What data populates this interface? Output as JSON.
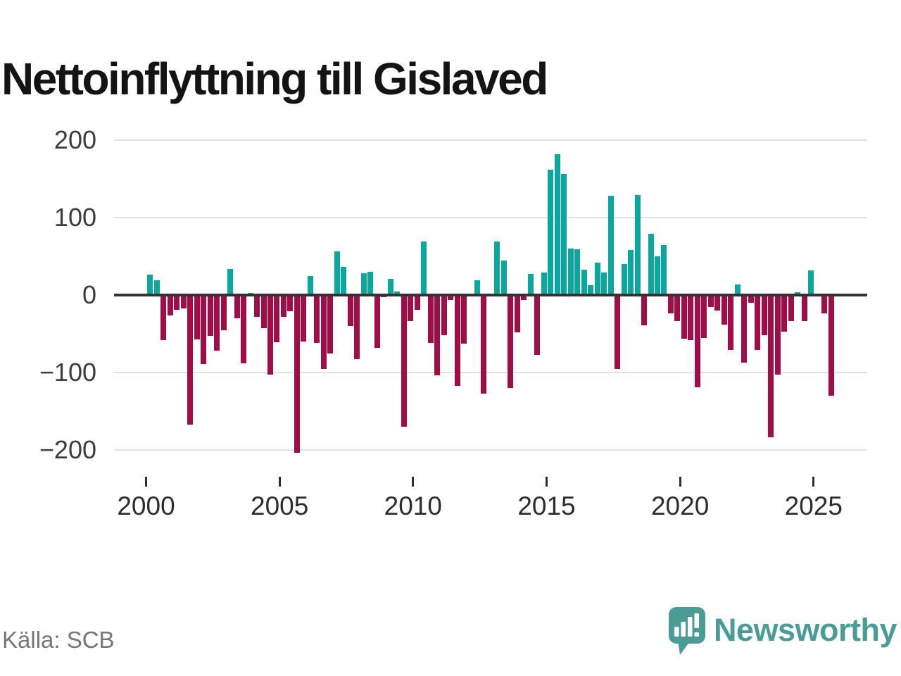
{
  "title": "Nettoinflyttning till Gislaved",
  "source": "Källa: SCB",
  "branding": {
    "name": "Newsworthy",
    "icon": "newsworthy-speech-bubble-chart-icon",
    "color": "#4a9c95"
  },
  "chart_data": {
    "type": "bar",
    "title": "Nettoinflyttning till Gislaved",
    "xlabel": "",
    "ylabel": "",
    "grid": true,
    "legend_position": "none",
    "ylim": [
      -235,
      235
    ],
    "yticks": [
      200,
      100,
      0,
      -100,
      -200
    ],
    "ytick_labels": [
      "200",
      "100",
      "0",
      "−100",
      "−200"
    ],
    "xticks": [
      2000,
      2005,
      2010,
      2015,
      2020,
      2025
    ],
    "positive_color": "#0ba79e",
    "negative_color": "#a00d47",
    "categories": [
      "2000Q1",
      "2000Q2",
      "2000Q3",
      "2000Q4",
      "2001Q1",
      "2001Q2",
      "2001Q3",
      "2001Q4",
      "2002Q1",
      "2002Q2",
      "2002Q3",
      "2002Q4",
      "2003Q1",
      "2003Q2",
      "2003Q3",
      "2003Q4",
      "2004Q1",
      "2004Q2",
      "2004Q3",
      "2004Q4",
      "2005Q1",
      "2005Q2",
      "2005Q3",
      "2005Q4",
      "2006Q1",
      "2006Q2",
      "2006Q3",
      "2006Q4",
      "2007Q1",
      "2007Q2",
      "2007Q3",
      "2007Q4",
      "2008Q1",
      "2008Q2",
      "2008Q3",
      "2008Q4",
      "2009Q1",
      "2009Q2",
      "2009Q3",
      "2009Q4",
      "2010Q1",
      "2010Q2",
      "2010Q3",
      "2010Q4",
      "2011Q1",
      "2011Q2",
      "2011Q3",
      "2011Q4",
      "2012Q1",
      "2012Q2",
      "2012Q3",
      "2012Q4",
      "2013Q1",
      "2013Q2",
      "2013Q3",
      "2013Q4",
      "2014Q1",
      "2014Q2",
      "2014Q3",
      "2014Q4",
      "2015Q1",
      "2015Q2",
      "2015Q3",
      "2015Q4",
      "2016Q1",
      "2016Q2",
      "2016Q3",
      "2016Q4",
      "2017Q1",
      "2017Q2",
      "2017Q3",
      "2017Q4",
      "2018Q1",
      "2018Q2",
      "2018Q3",
      "2018Q4",
      "2019Q1",
      "2019Q2",
      "2019Q3",
      "2019Q4",
      "2020Q1",
      "2020Q2",
      "2020Q3",
      "2020Q4",
      "2021Q1",
      "2021Q2",
      "2021Q3",
      "2021Q4",
      "2022Q1",
      "2022Q2",
      "2022Q3",
      "2022Q4",
      "2023Q1",
      "2023Q2",
      "2023Q3",
      "2023Q4",
      "2024Q1",
      "2024Q2",
      "2024Q3",
      "2024Q4",
      "2025Q1",
      "2025Q2",
      "2025Q3"
    ],
    "values": [
      26,
      19,
      -58,
      -26,
      -19,
      -17,
      -167,
      -57,
      -89,
      -53,
      -72,
      -45,
      34,
      -30,
      -88,
      3,
      -28,
      -43,
      -103,
      -61,
      -28,
      -21,
      -204,
      -60,
      25,
      -62,
      -95,
      -75,
      56,
      36,
      -40,
      -83,
      28,
      30,
      -68,
      -3,
      21,
      5,
      -170,
      -34,
      -19,
      69,
      -62,
      -104,
      -52,
      -6,
      -117,
      -63,
      0,
      19,
      -127,
      0,
      69,
      45,
      -120,
      -48,
      -6,
      27,
      -77,
      29,
      162,
      182,
      156,
      60,
      59,
      33,
      13,
      42,
      29,
      128,
      -95,
      40,
      58,
      129,
      -39,
      79,
      50,
      65,
      -24,
      -34,
      -56,
      -58,
      -119,
      -55,
      -15,
      -20,
      -38,
      -71,
      14,
      -87,
      -10,
      -71,
      -52,
      -184,
      -103,
      -47,
      -34,
      4,
      -34,
      32,
      0,
      -24,
      -130
    ]
  }
}
